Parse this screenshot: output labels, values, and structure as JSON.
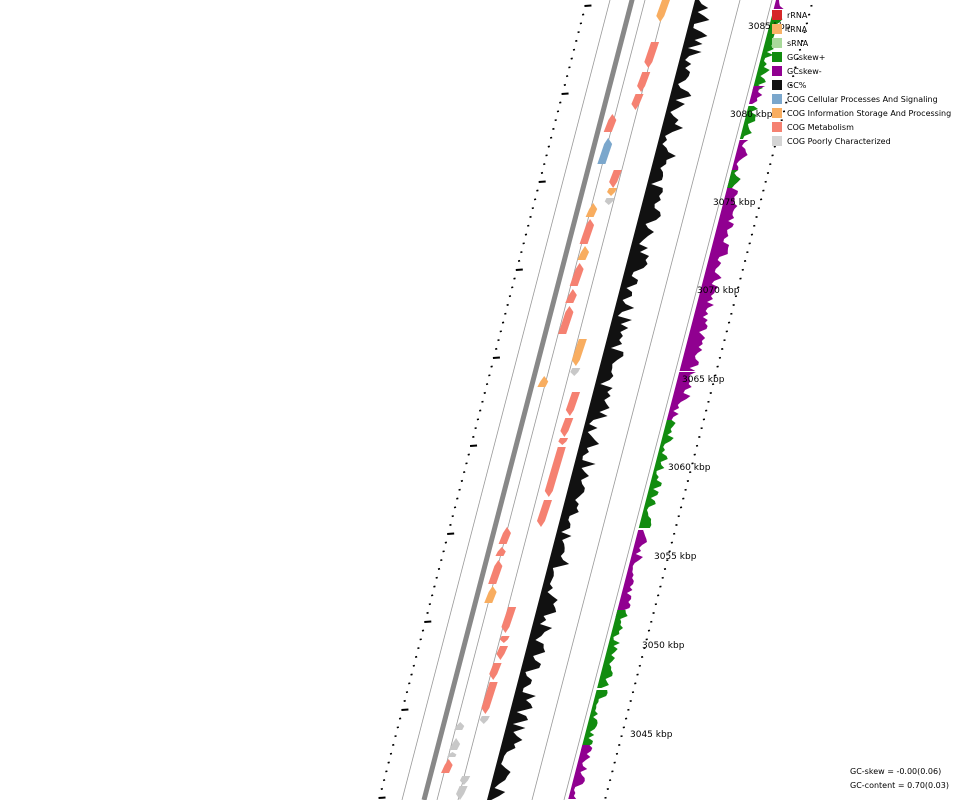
{
  "legend": [
    {
      "label": "rRNA",
      "color": "#d62728",
      "icon": "swatch"
    },
    {
      "label": "tRNA",
      "color": "#f7b267",
      "icon": "swatch"
    },
    {
      "label": "sRNA",
      "color": "#a8d99a",
      "icon": "swatch"
    },
    {
      "label": "GCskew+",
      "color": "#118c0f",
      "icon": "swatch"
    },
    {
      "label": "GCskew-",
      "color": "#900090",
      "icon": "swatch"
    },
    {
      "label": "GC%",
      "color": "#111111",
      "icon": "swatch"
    },
    {
      "label": "COG Cellular Processes And Signaling",
      "color": "#7ba7cc",
      "icon": "swatch"
    },
    {
      "label": "COG Information Storage And Processing",
      "color": "#f8ad60",
      "icon": "swatch"
    },
    {
      "label": "COG Metabolism",
      "color": "#f58171",
      "icon": "swatch"
    },
    {
      "label": "COG Poorly Characterized",
      "color": "#d4d4d4",
      "icon": "swatch"
    }
  ],
  "scale_labels": [
    "3045 kbp",
    "3050 kbp",
    "3055 kbp",
    "3060 kbp",
    "3065 kbp",
    "3070 kbp",
    "3075 kbp",
    "3080 kbp",
    "3085 kbp"
  ],
  "footer": {
    "gc_skew": "GC-skew = -0.00(0.06)",
    "gc_content": "GC-content = 0.70(0.03)"
  },
  "colors": {
    "backbone": "#888888",
    "track_line": "#999999",
    "gc": "#111111",
    "skew_pos": "#118c0f",
    "skew_neg": "#900090",
    "cog_metabolism": "#f58171",
    "cog_info": "#f8ad60",
    "cog_cell": "#7ba7cc",
    "cog_poor": "#c8c8c8"
  }
}
